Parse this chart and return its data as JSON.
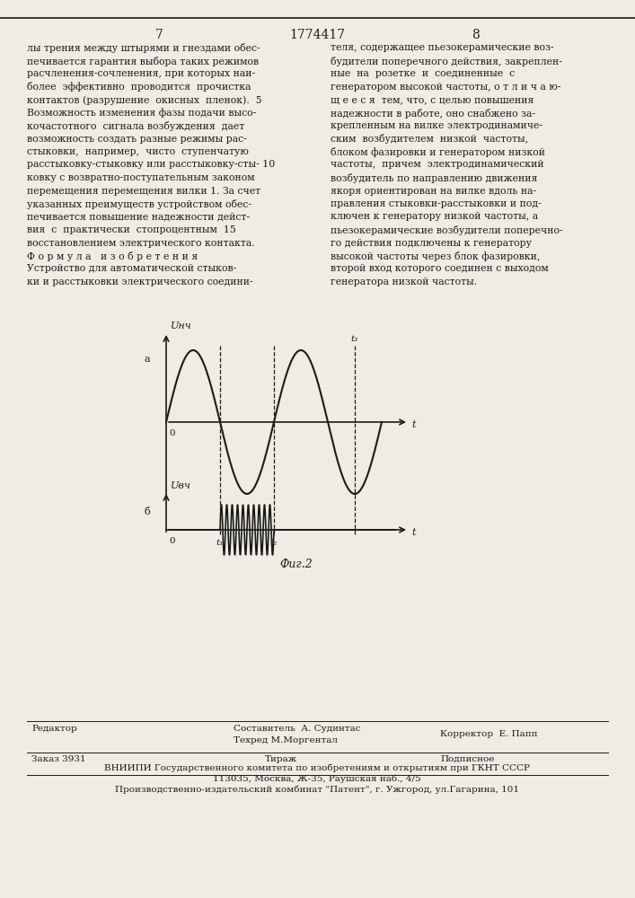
{
  "page_number_left": "7",
  "page_number_center": "1774417",
  "page_number_right": "8",
  "left_column_text": [
    "лы трения между штырями и гнездами обес-",
    "печивается гарантия выбора таких режимов",
    "расчленения-сочленения, при которых наи-",
    "более  эффективно  проводится  прочистка",
    "контактов (разрушение  окисных  пленок).  5",
    "Возможность изменения фазы подачи высо-",
    "кочастотного  сигнала возбуждения  дает",
    "возможность создать разные режимы рас-",
    "стыковки,  например,  чисто  ступенчатую",
    "расстыковку-стыковку или расстыковку-сты- 10",
    "ковку с возвратно-поступательным законом",
    "перемещения перемещения вилки 1. За счет",
    "указанных преимуществ устройством обес-",
    "печивается повышение надежности дейст-",
    "вия  с  практически  стопроцентным  15",
    "восстановлением электрического контакта.",
    "Ф о р м у л а   и з о б р е т е н и я",
    "Устройство для автоматической стыков-",
    "ки и расстыковки электрического соедини-"
  ],
  "right_column_text": [
    "теля, содержащее пьезокерамические воз-",
    "будители поперечного действия, закреплен-",
    "ные  на  розетке  и  соединенные  с",
    "генератором высокой частоты, о т л и ч а ю-",
    "щ е е с я  тем, что, с целью повышения",
    "надежности в работе, оно снабжено за-",
    "крепленным на вилке электродинамиче-",
    "ским  возбудителем  низкой  частоты,",
    "блоком фазировки и генератором низкой",
    "частоты,  причем  электродинамический",
    "возбудитель по направлению движения",
    "якоря ориентирован на вилке вдоль на-",
    "правления стыковки-расстыковки и под-",
    "ключен к генератору низкой частоты, а",
    "пьезокерамические возбудители поперечно-",
    "го действия подключены к генератору",
    "высокой частоты через блок фазировки,",
    "второй вход которого соединен с выходом",
    "генератора низкой частоты."
  ],
  "fig_label": "Фиг.2",
  "graph_a_ylabel": "Uнч",
  "graph_a_label": "а",
  "graph_b_ylabel": "Uвч",
  "graph_b_label": "б",
  "t1_label": "t₁",
  "t2_label": "t₂",
  "t3_label": "t₃",
  "t_label": "t",
  "o_label": "0",
  "footer_editor": "Редактор",
  "footer_composer": "Составитель  А. Судинтас",
  "footer_techred": "Техред М.Моргентал",
  "footer_corrector": "Корректор  Е. Папп",
  "footer_order": "Заказ 3931",
  "footer_tirazh": "Тираж",
  "footer_podpisnoe": "Подписное",
  "footer_vniiipi": "ВНИИПИ Государственного комитета по изобретениям и открытиям при ГКНТ СССР",
  "footer_address": "113035, Москва, Ж-35, Раушская наб., 4/5",
  "footer_plant": "Производственно-издательский комбинат \"Патент\", г. Ужгород, ул.Гагарина, 101",
  "bg_color": "#f0ece4",
  "text_color": "#1a1a1a",
  "line_color": "#1a1a1a"
}
